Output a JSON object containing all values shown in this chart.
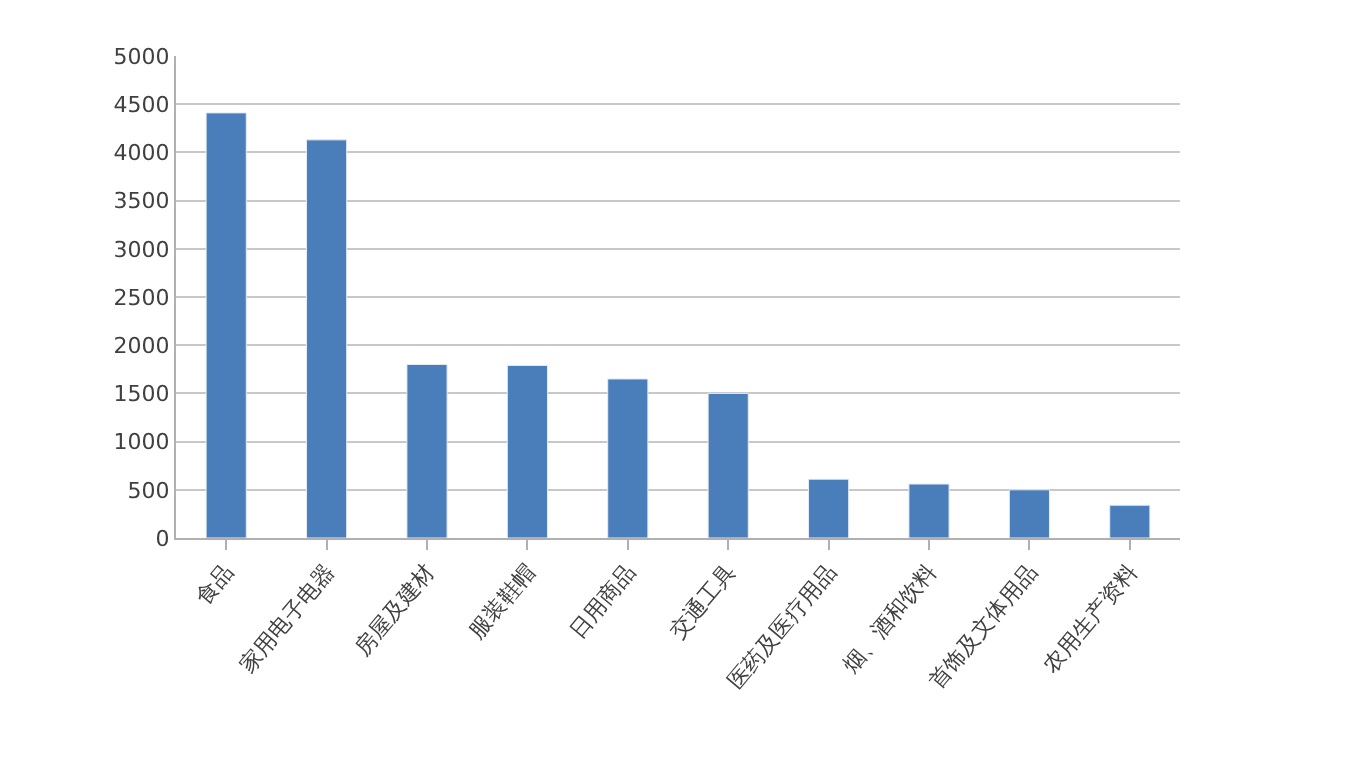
{
  "chart_data": {
    "type": "bar",
    "categories": [
      "食品",
      "家用电子电器",
      "房屋及建材",
      "服装鞋帽",
      "日用商品",
      "交通工具",
      "医药及医疗用品",
      "烟、酒和饮料",
      "首饰及文体用品",
      "农用生产资料"
    ],
    "values": [
      4410,
      4130,
      1800,
      1790,
      1650,
      1500,
      610,
      560,
      500,
      340
    ],
    "color": "#4a7ebb",
    "ylim": [
      0,
      5000
    ],
    "yticks": [
      0,
      500,
      1000,
      1500,
      2000,
      2500,
      3000,
      3500,
      4000,
      4500,
      5000
    ],
    "grid": "y",
    "legend": false
  }
}
